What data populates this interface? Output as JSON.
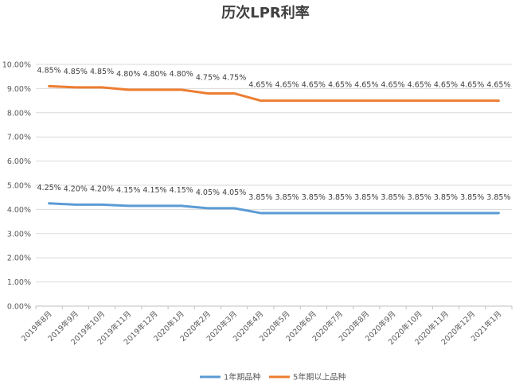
{
  "chart_data": {
    "type": "line",
    "title": "历次LPR利率",
    "xlabel": "",
    "ylabel": "",
    "ylim": [
      0,
      10
    ],
    "yticks": [
      "0.00%",
      "1.00%",
      "2.00%",
      "3.00%",
      "4.00%",
      "5.00%",
      "6.00%",
      "7.00%",
      "8.00%",
      "9.00%",
      "10.00%"
    ],
    "categories": [
      "2019年8月",
      "2019年9月",
      "2019年10月",
      "2019年11月",
      "2019年12月",
      "2020年1月",
      "2020年2月",
      "2020年3月",
      "2020年4月",
      "2020年5月",
      "2020年6月",
      "2020年7月",
      "2020年8月",
      "2020年9月",
      "2020年10月",
      "2020年11月",
      "2020年12月",
      "2021年1月"
    ],
    "grid": true,
    "legend_position": "bottom",
    "series": [
      {
        "name": "1年期品种",
        "color": "#5b9bd5",
        "values": [
          4.25,
          4.2,
          4.2,
          4.15,
          4.15,
          4.15,
          4.05,
          4.05,
          3.85,
          3.85,
          3.85,
          3.85,
          3.85,
          3.85,
          3.85,
          3.85,
          3.85,
          3.85
        ],
        "labels": [
          "4.25%",
          "4.20%",
          "4.20%",
          "4.15%",
          "4.15%",
          "4.15%",
          "4.05%",
          "4.05%",
          "3.85%",
          "3.85%",
          "3.85%",
          "3.85%",
          "3.85%",
          "3.85%",
          "3.85%",
          "3.85%",
          "3.85%",
          "3.85%"
        ]
      },
      {
        "name": "5年期以上品种",
        "color": "#ed7d31",
        "values": [
          9.1,
          9.05,
          9.05,
          8.95,
          8.95,
          8.95,
          8.8,
          8.8,
          8.5,
          8.5,
          8.5,
          8.5,
          8.5,
          8.5,
          8.5,
          8.5,
          8.5,
          8.5
        ],
        "labels": [
          "4.85%",
          "4.85%",
          "4.85%",
          "4.80%",
          "4.80%",
          "4.80%",
          "4.75%",
          "4.75%",
          "4.65%",
          "4.65%",
          "4.65%",
          "4.65%",
          "4.65%",
          "4.65%",
          "4.65%",
          "4.65%",
          "4.65%",
          "4.65%"
        ]
      }
    ]
  }
}
